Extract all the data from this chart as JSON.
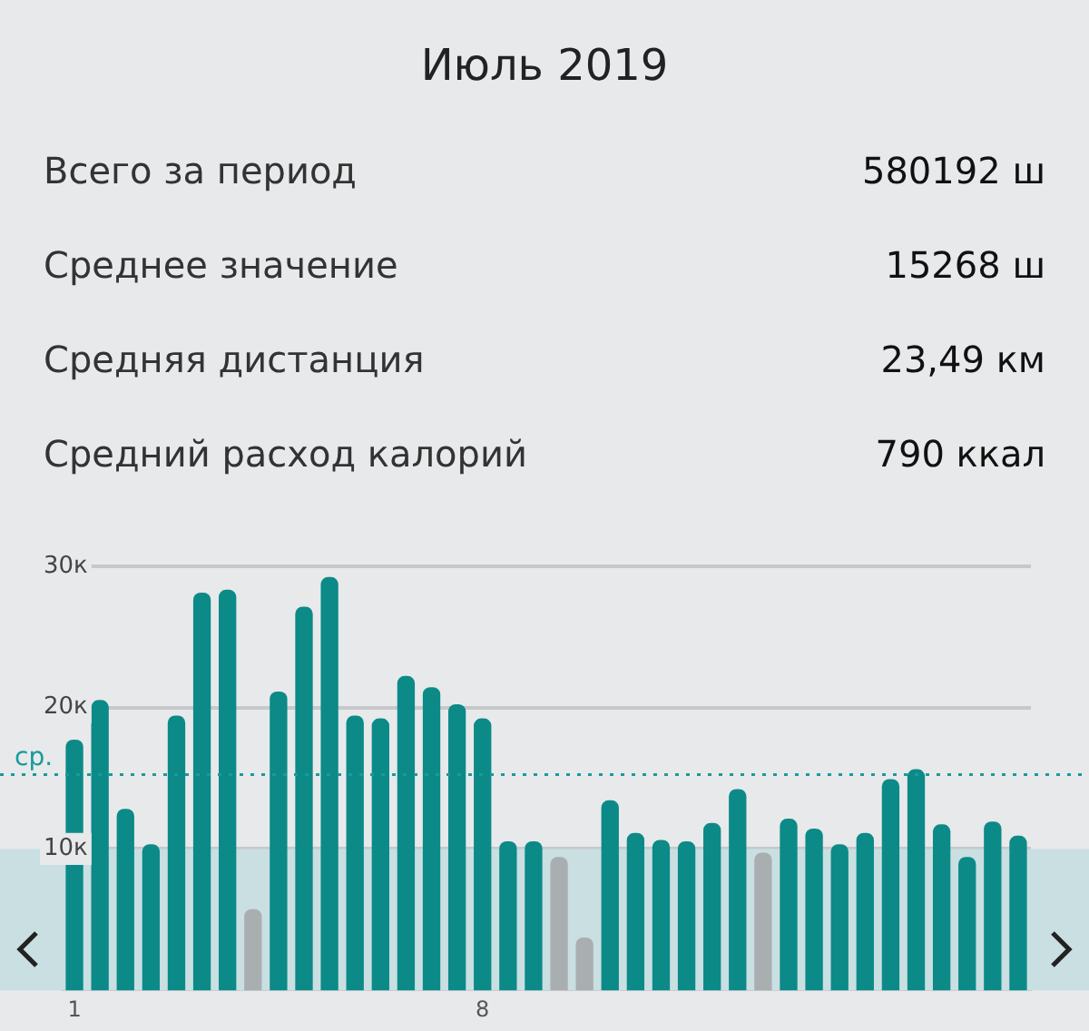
{
  "chart_data": {
    "type": "bar",
    "title": "Июль 2019",
    "annotations": [
      "Всего за период",
      "580192 ш",
      "Среднее значение",
      "15268 ш",
      "Средняя дистанция",
      "23,49 км",
      "Средний расход калорий",
      "790 ккал"
    ],
    "categories": [
      "1",
      null,
      null,
      null,
      null,
      null,
      null,
      null,
      null,
      null,
      null,
      null,
      null,
      null,
      null,
      null,
      "8",
      null,
      null,
      null,
      null,
      null,
      null,
      null,
      null,
      null,
      null,
      null,
      null,
      null,
      null,
      null,
      null,
      null,
      null,
      null,
      null,
      null
    ],
    "values": [
      17.7,
      20.5,
      12.8,
      10.3,
      19.4,
      28.1,
      28.3,
      5.7,
      21.1,
      27.1,
      29.2,
      19.4,
      19.2,
      22.2,
      21.4,
      20.2,
      19.2,
      10.5,
      10.5,
      9.4,
      3.7,
      13.4,
      11.1,
      10.6,
      10.5,
      11.8,
      14.2,
      9.7,
      12.1,
      11.4,
      10.3,
      11.1,
      14.9,
      15.6,
      11.7,
      9.4,
      11.9,
      10.9
    ],
    "colors": [
      "#0b8a88",
      "#0b8a88",
      "#0b8a88",
      "#0b8a88",
      "#0b8a88",
      "#0b8a88",
      "#0b8a88",
      "#a9afb1",
      "#0b8a88",
      "#0b8a88",
      "#0b8a88",
      "#0b8a88",
      "#0b8a88",
      "#0b8a88",
      "#0b8a88",
      "#0b8a88",
      "#0b8a88",
      "#0b8a88",
      "#0b8a88",
      "#a9afb1",
      "#a9afb1",
      "#0b8a88",
      "#0b8a88",
      "#0b8a88",
      "#0b8a88",
      "#0b8a88",
      "#0b8a88",
      "#a9afb1",
      "#0b8a88",
      "#0b8a88",
      "#0b8a88",
      "#0b8a88",
      "#0b8a88",
      "#0b8a88",
      "#0b8a88",
      "#0b8a88",
      "#0b8a88",
      "#0b8a88"
    ],
    "ylim": [
      0,
      30
    ],
    "yticks": [
      {
        "value": 10,
        "label": "10к"
      },
      {
        "value": 20,
        "label": "20к"
      },
      {
        "value": 30,
        "label": "30к"
      }
    ],
    "grid": "y",
    "ref_lines": [
      {
        "axis": "y",
        "value": 15.268,
        "label": "ср.",
        "color": "#1a9a9a",
        "line_style": "dotted"
      }
    ],
    "bands": [
      {
        "axis": "y",
        "from": 0,
        "to": 10,
        "color": "#c9dfe2"
      }
    ]
  }
}
